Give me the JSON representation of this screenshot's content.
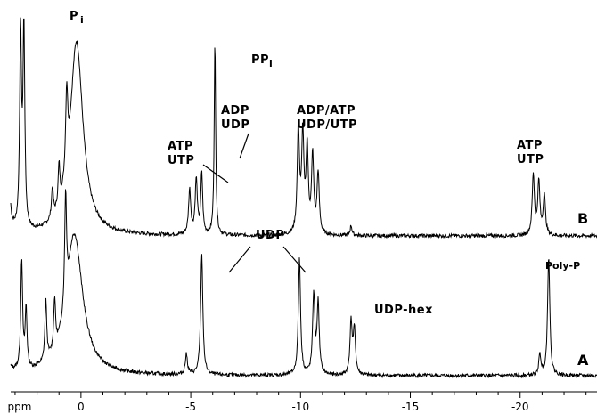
{
  "chart_data": {
    "type": "line",
    "xlabel": "ppm",
    "x_reversed": true,
    "xlim": [
      3.2,
      -23.5
    ],
    "x_ticks": [
      0,
      -5,
      -10,
      -15,
      -20
    ],
    "x_tick_labels": [
      "0",
      "-5",
      "-10",
      "-15",
      "-20"
    ],
    "series": [
      {
        "name": "B",
        "peaks": [
          {
            "ppm": 2.75,
            "height": 0.95,
            "width": 0.05
          },
          {
            "ppm": 2.6,
            "height": 0.98,
            "width": 0.05
          },
          {
            "ppm": 4.0,
            "height": 0.5,
            "width": 0.07
          },
          {
            "ppm": 3.8,
            "height": 0.55,
            "width": 0.06
          },
          {
            "ppm": 3.6,
            "height": 0.48,
            "width": 0.06
          },
          {
            "ppm": 3.3,
            "height": 0.42,
            "width": 0.06
          },
          {
            "ppm": 0.2,
            "height": 0.95,
            "width": 0.35
          },
          {
            "ppm": 0.65,
            "height": 0.4,
            "width": 0.06
          },
          {
            "ppm": 1.0,
            "height": 0.2,
            "width": 0.05
          },
          {
            "ppm": 1.3,
            "height": 0.15,
            "width": 0.05
          },
          {
            "ppm": -4.95,
            "height": 0.22,
            "width": 0.06
          },
          {
            "ppm": -5.25,
            "height": 0.27,
            "width": 0.06
          },
          {
            "ppm": -5.5,
            "height": 0.3,
            "width": 0.05
          },
          {
            "ppm": -6.1,
            "height": 0.95,
            "width": 0.04
          },
          {
            "ppm": -9.9,
            "height": 0.52,
            "width": 0.06
          },
          {
            "ppm": -10.1,
            "height": 0.48,
            "width": 0.06
          },
          {
            "ppm": -10.3,
            "height": 0.42,
            "width": 0.06
          },
          {
            "ppm": -10.55,
            "height": 0.38,
            "width": 0.06
          },
          {
            "ppm": -10.8,
            "height": 0.3,
            "width": 0.06
          },
          {
            "ppm": -12.3,
            "height": 0.05,
            "width": 0.05
          },
          {
            "ppm": -20.6,
            "height": 0.3,
            "width": 0.06
          },
          {
            "ppm": -20.85,
            "height": 0.26,
            "width": 0.06
          },
          {
            "ppm": -21.1,
            "height": 0.2,
            "width": 0.06
          }
        ]
      },
      {
        "name": "A",
        "peaks": [
          {
            "ppm": 4.0,
            "height": 0.55,
            "width": 0.06
          },
          {
            "ppm": 3.8,
            "height": 0.6,
            "width": 0.06
          },
          {
            "ppm": 3.5,
            "height": 0.5,
            "width": 0.06
          },
          {
            "ppm": 2.7,
            "height": 0.55,
            "width": 0.05
          },
          {
            "ppm": 2.5,
            "height": 0.3,
            "width": 0.05
          },
          {
            "ppm": 1.6,
            "height": 0.3,
            "width": 0.05
          },
          {
            "ppm": 1.2,
            "height": 0.25,
            "width": 0.05
          },
          {
            "ppm": 0.7,
            "height": 0.55,
            "width": 0.05
          },
          {
            "ppm": 0.3,
            "height": 0.7,
            "width": 0.45
          },
          {
            "ppm": -4.8,
            "height": 0.1,
            "width": 0.06
          },
          {
            "ppm": -5.5,
            "height": 0.6,
            "width": 0.06
          },
          {
            "ppm": -9.95,
            "height": 0.58,
            "width": 0.06
          },
          {
            "ppm": -10.6,
            "height": 0.4,
            "width": 0.06
          },
          {
            "ppm": -10.8,
            "height": 0.35,
            "width": 0.06
          },
          {
            "ppm": -12.3,
            "height": 0.26,
            "width": 0.06
          },
          {
            "ppm": -12.45,
            "height": 0.22,
            "width": 0.06
          },
          {
            "ppm": -20.9,
            "height": 0.1,
            "width": 0.06
          },
          {
            "ppm": -21.3,
            "height": 0.6,
            "width": 0.06
          }
        ]
      }
    ],
    "annotations": {
      "pi": "P",
      "pi_sub": "i",
      "ppi": "PP",
      "ppi_sub": "i",
      "adp_udp_1": "ADP",
      "adp_udp_2": "UDP",
      "atp_utp_left_1": "ATP",
      "atp_utp_left_2": "UTP",
      "adp_atp_1": "ADP/ATP",
      "adp_atp_2": "UDP/UTP",
      "atp_utp_right_1": "ATP",
      "atp_utp_right_2": "UTP",
      "udp": "UDP",
      "udp_hex": "UDP-hex",
      "poly_p": "Poly-P"
    }
  }
}
